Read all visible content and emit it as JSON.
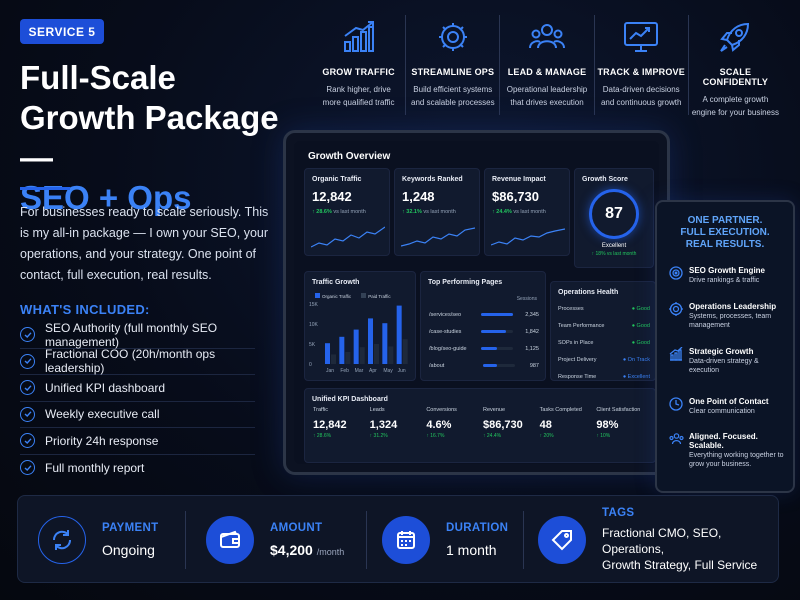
{
  "badge": "SERVICE 5",
  "title": {
    "line1": "Full-Scale",
    "line2": "Growth Package —",
    "accent": "SEO + Ops"
  },
  "intro": "For businesses ready to scale seriously. This is my all-in package — I own your SEO, your operations, and your strategy. One point of contact, full execution, real results.",
  "included": {
    "heading": "WHAT'S INCLUDED:",
    "items": [
      "SEO Authority (full monthly SEO management)",
      "Fractional COO (20h/month ops leadership)",
      "Unified KPI dashboard",
      "Weekly executive call",
      "Priority 24h response",
      "Full monthly report"
    ]
  },
  "features": [
    {
      "icon": "bar-chart-growth-icon",
      "name": "GROW TRAFFIC",
      "desc1": "Rank higher, drive",
      "desc2": "more qualified traffic"
    },
    {
      "icon": "gear-icon",
      "name": "STREAMLINE OPS",
      "desc1": "Build efficient systems",
      "desc2": "and scalable processes"
    },
    {
      "icon": "team-icon",
      "name": "LEAD & MANAGE",
      "desc1": "Operational leadership",
      "desc2": "that drives execution"
    },
    {
      "icon": "monitor-chart-icon",
      "name": "TRACK & IMPROVE",
      "desc1": "Data-driven decisions",
      "desc2": "and continuous growth"
    },
    {
      "icon": "rocket-icon",
      "name": "SCALE CONFIDENTLY",
      "desc1": "A complete growth",
      "desc2": "engine for your business"
    }
  ],
  "dashboard": {
    "title": "Growth Overview",
    "cards": [
      {
        "title": "Organic Traffic",
        "value": "12,842",
        "delta": "↑ 28.6%",
        "note": "vs last month"
      },
      {
        "title": "Keywords Ranked",
        "value": "1,248",
        "delta": "↑ 32.1%",
        "note": "vs last month"
      },
      {
        "title": "Revenue Impact",
        "value": "$86,730",
        "delta": "↑ 24.4%",
        "note": "vs last month"
      }
    ],
    "score": {
      "title": "Growth Score",
      "value": "87",
      "label": "Excellent",
      "delta": "↑ 18% vs last month"
    },
    "traffic_growth": {
      "title": "Traffic Growth",
      "legend": [
        "Organic Traffic",
        "Paid Traffic"
      ],
      "yticks": [
        "15K",
        "10K",
        "5K",
        "0"
      ],
      "months": [
        "Jan",
        "Feb",
        "Mar",
        "Apr",
        "May",
        "Jun"
      ]
    },
    "top_pages": {
      "title": "Top Performing Pages",
      "col": "Sessions",
      "rows": [
        {
          "page": "/services/seo",
          "sessions": "2,345",
          "fill": 1.0
        },
        {
          "page": "/case-studies",
          "sessions": "1,842",
          "fill": 0.78
        },
        {
          "page": "/blog/seo-guide",
          "sessions": "1,125",
          "fill": 0.5
        },
        {
          "page": "/about",
          "sessions": "987",
          "fill": 0.42
        }
      ]
    },
    "ops_health": {
      "title": "Operations Health",
      "rows": [
        {
          "label": "Processes",
          "status": "Good",
          "kind": "good"
        },
        {
          "label": "Team Performance",
          "status": "Good",
          "kind": "good"
        },
        {
          "label": "SOPs in Place",
          "status": "Good",
          "kind": "good"
        },
        {
          "label": "Project Delivery",
          "status": "On Track",
          "kind": "ontrack"
        },
        {
          "label": "Response Time",
          "status": "Excellent",
          "kind": "ontrack"
        }
      ]
    },
    "kpi": {
      "title": "Unified KPI Dashboard",
      "items": [
        {
          "label": "Traffic",
          "value": "12,842",
          "delta": "↑ 28.6%"
        },
        {
          "label": "Leads",
          "value": "1,324",
          "delta": "↑ 31.2%"
        },
        {
          "label": "Conversions",
          "value": "4.6%",
          "delta": "↑ 16.7%"
        },
        {
          "label": "Revenue",
          "value": "$86,730",
          "delta": "↑ 24.4%"
        },
        {
          "label": "Tasks Completed",
          "value": "48",
          "delta": "↑ 20%"
        },
        {
          "label": "Client Satisfaction",
          "value": "98%",
          "delta": "↑ 10%"
        }
      ]
    }
  },
  "phone": {
    "heading1": "ONE PARTNER.",
    "heading2": "FULL EXECUTION.",
    "heading3": "REAL RESULTS.",
    "items": [
      {
        "icon": "target-icon",
        "title": "SEO Growth Engine",
        "desc": "Drive rankings & traffic"
      },
      {
        "icon": "gear-icon",
        "title": "Operations Leadership",
        "desc": "Systems, processes, team management"
      },
      {
        "icon": "growth-chart-icon",
        "title": "Strategic Growth",
        "desc": "Data-driven strategy & execution"
      },
      {
        "icon": "clock-icon",
        "title": "One Point of Contact",
        "desc": "Clear communication"
      },
      {
        "icon": "team-icon",
        "title": "Aligned. Focused. Scalable.",
        "desc": "Everything working together to grow your business."
      }
    ]
  },
  "summary": {
    "payment": {
      "label": "PAYMENT",
      "value": "Ongoing"
    },
    "amount": {
      "label": "AMOUNT",
      "value": "$4,200",
      "unit": "/month"
    },
    "duration": {
      "label": "DURATION",
      "value": "1 month"
    },
    "tags": {
      "label": "TAGS",
      "value1": "Fractional CMO, SEO, Operations,",
      "value2": "Growth Strategy, Full Service"
    }
  },
  "chart_data": {
    "type": "bar",
    "categories": [
      "Jan",
      "Feb",
      "Mar",
      "Apr",
      "May",
      "Jun"
    ],
    "series": [
      {
        "name": "Organic Traffic",
        "values": [
          5.2,
          6.8,
          8.6,
          11.4,
          10.2,
          14.6
        ]
      },
      {
        "name": "Paid Traffic",
        "values": [
          2.4,
          3.0,
          4.2,
          5.0,
          4.4,
          6.2
        ]
      }
    ],
    "title": "Traffic Growth",
    "yticks": [
      "15K",
      "10K",
      "5K",
      "0"
    ],
    "ylim": [
      0,
      15
    ],
    "colors": [
      "#2563eb",
      "#1e293b"
    ]
  }
}
